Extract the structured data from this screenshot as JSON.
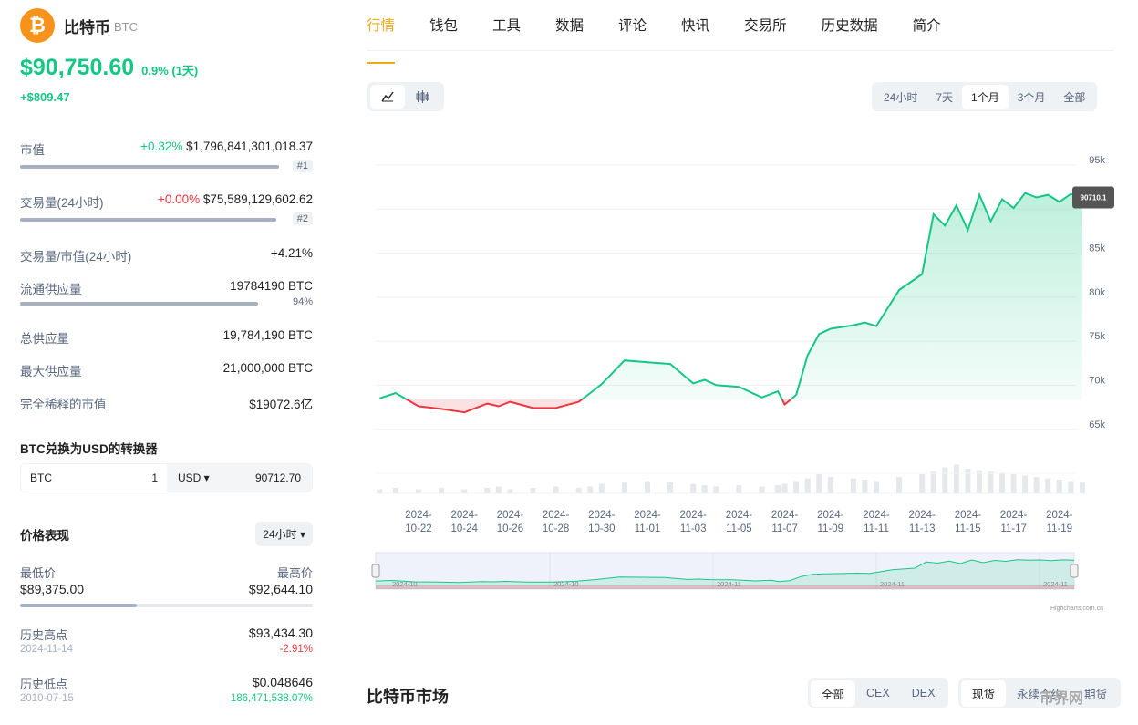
{
  "coin": {
    "name": "比特币",
    "symbol": "BTC",
    "logo_char": "₿",
    "price": "$90,750.60",
    "change_pct": "0.9% (1天)",
    "change_abs": "+$809.47"
  },
  "stats": [
    {
      "label": "市值",
      "pct": "+0.32%",
      "value": "$1,796,841,301,018.37",
      "rank": "#1"
    },
    {
      "label": "交易量(24小时)",
      "pct": "+0.00%",
      "value": "$75,589,129,602.62",
      "rank": "#2"
    },
    {
      "label": "交易量/市值(24小时)",
      "value": "+4.21%"
    },
    {
      "label": "流通供应量",
      "value": "19784190 BTC",
      "supply_pct": "94%"
    },
    {
      "label": "总供应量",
      "value": "19,784,190 BTC"
    },
    {
      "label": "最大供应量",
      "value": "21,000,000 BTC"
    },
    {
      "label": "完全稀释的市值",
      "value": "$19072.6亿"
    }
  ],
  "converter": {
    "title": "BTC兑换为USD的转换器",
    "from_symbol": "BTC",
    "from_amount": "1",
    "to_symbol": "USD ▾",
    "to_amount": "90712.70"
  },
  "performance": {
    "title": "价格表现",
    "period": "24小时 ▾",
    "low_label": "最低价",
    "low": "$89,375.00",
    "high_label": "最高价",
    "high": "$92,644.10",
    "ath_label": "历史高点",
    "ath": "$93,434.30",
    "ath_date": "2024-11-14",
    "ath_pct": "-2.91%",
    "atl_label": "历史低点",
    "atl": "$0.048646",
    "atl_date": "2010-07-15",
    "atl_pct": "186,471,538.07%"
  },
  "tabs": [
    "行情",
    "钱包",
    "工具",
    "数据",
    "评论",
    "快讯",
    "交易所",
    "历史数据",
    "简介"
  ],
  "chart_toggle": [
    "line-chart-icon",
    "candlestick-icon"
  ],
  "ranges": [
    "24小时",
    "7天",
    "1个月",
    "3个月",
    "全部"
  ],
  "active_range": "1个月",
  "chart_data": {
    "type": "area",
    "ylim": [
      63000,
      97000
    ],
    "yticks": [
      "95k",
      "90k",
      "85k",
      "80k",
      "75k",
      "70k",
      "65k"
    ],
    "ytick_values": [
      95000,
      90000,
      85000,
      80000,
      75000,
      70000,
      65000
    ],
    "baseline": 67800,
    "last_value_label": "90710.1",
    "xtick_labels": [
      "2024-\n10-22",
      "2024-\n10-24",
      "2024-\n10-26",
      "2024-\n10-28",
      "2024-\n10-30",
      "2024-\n11-01",
      "2024-\n11-03",
      "2024-\n11-05",
      "2024-\n11-07",
      "2024-\n11-09",
      "2024-\n11-11",
      "2024-\n11-13",
      "2024-\n11-15",
      "2024-\n11-17",
      "2024-\n11-19"
    ],
    "x_days": [
      -1.7,
      -1.0,
      0,
      1,
      2,
      3,
      3.5,
      4,
      5,
      6,
      7,
      7.5,
      8,
      9,
      10,
      11,
      12,
      12.5,
      13,
      14,
      15,
      15.7,
      16,
      16.5,
      17,
      17.5,
      18,
      19,
      19.5,
      20,
      21,
      22,
      22.5,
      23,
      23.5,
      24,
      24.5,
      25,
      25.5,
      26,
      26.5,
      27,
      27.5,
      28,
      28.5,
      29
    ],
    "y": [
      67900,
      68500,
      67000,
      66700,
      66300,
      67300,
      67000,
      67500,
      66800,
      66800,
      67500,
      68500,
      69500,
      72200,
      72000,
      71800,
      69600,
      70000,
      69400,
      69200,
      68000,
      68700,
      67200,
      68300,
      72800,
      75200,
      75800,
      76200,
      76500,
      76100,
      80200,
      82000,
      88800,
      87500,
      89800,
      87000,
      91000,
      88000,
      90500,
      89500,
      91200,
      90700,
      91000,
      90200,
      91100,
      90710
    ],
    "volume": [
      3,
      4,
      3,
      4,
      3,
      4,
      5,
      3,
      4,
      5,
      4,
      5,
      7,
      8,
      9,
      8,
      7,
      6,
      5,
      6,
      5,
      6,
      7,
      9,
      11,
      14,
      12,
      11,
      10,
      9,
      12,
      14,
      16,
      19,
      21,
      18,
      17,
      16,
      15,
      14,
      13,
      12,
      11,
      10,
      9,
      8
    ],
    "navigator_labels": [
      "2024-10",
      "2024-10",
      "2024-11",
      "2024-11",
      "2024-11"
    ],
    "credit": "Highcharts.com.cn"
  },
  "market": {
    "title": "比特币市场",
    "seg1": [
      "全部",
      "CEX",
      "DEX"
    ],
    "seg2": [
      "现货",
      "永续合约",
      "期货"
    ]
  },
  "watermark": "币界网"
}
